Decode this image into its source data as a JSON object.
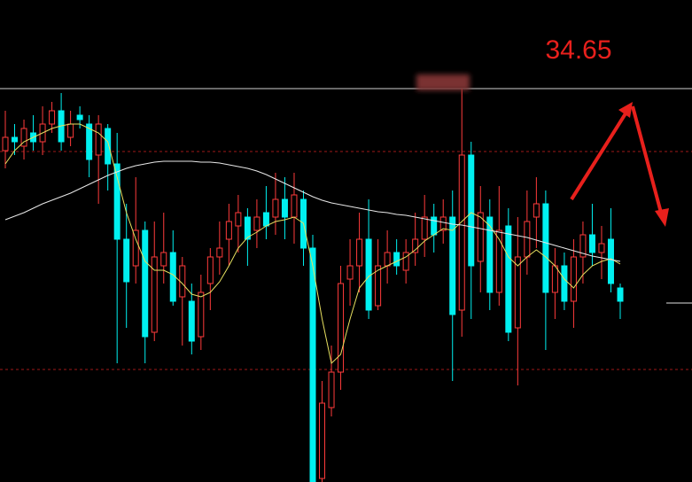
{
  "chart_data": {
    "type": "candlestick",
    "ylim": [
      30.21,
      35.65
    ],
    "up_color": "#ff3b3b",
    "down_color": "#00f0f0",
    "open": [
      33.95,
      34.1,
      34.0,
      34.15,
      34.05,
      34.25,
      34.4,
      34.1,
      34.35,
      34.25,
      33.9,
      34.2,
      33.8,
      32.95,
      32.65,
      33.05,
      31.9,
      32.65,
      32.8,
      32.3,
      32.25,
      31.85,
      32.45,
      32.75,
      32.95,
      33.1,
      33.2,
      33.05,
      33.25,
      33.2,
      33.4,
      33.2,
      33.4,
      32.85,
      30.25,
      31.05,
      31.45,
      32.5,
      32.65,
      32.95,
      32.2,
      32.65,
      32.8,
      32.6,
      32.8,
      32.95,
      33.2,
      33.05,
      33.2,
      32.15,
      33.9,
      32.7,
      33.2,
      32.35,
      33.1,
      31.95,
      32.75,
      33.2,
      33.35,
      32.35,
      32.65,
      32.25,
      32.75,
      33.0,
      32.8,
      32.95,
      32.4
    ],
    "high": [
      34.4,
      34.25,
      34.3,
      34.35,
      34.45,
      34.5,
      34.6,
      34.4,
      34.45,
      34.35,
      34.35,
      34.25,
      34.15,
      33.35,
      33.65,
      33.15,
      33.15,
      33.25,
      33.05,
      32.75,
      32.45,
      32.55,
      32.85,
      33.15,
      33.35,
      33.45,
      33.3,
      33.4,
      33.55,
      33.7,
      33.65,
      33.7,
      33.5,
      33.0,
      31.35,
      31.75,
      32.65,
      32.95,
      33.25,
      33.4,
      32.95,
      33.05,
      32.95,
      32.95,
      33.25,
      33.45,
      33.35,
      33.4,
      33.5,
      34.65,
      34.05,
      33.55,
      33.4,
      33.55,
      33.3,
      33.2,
      33.5,
      33.65,
      33.5,
      32.85,
      32.8,
      32.95,
      33.15,
      33.35,
      33.1,
      33.3,
      32.45
    ],
    "low": [
      33.75,
      33.9,
      33.85,
      33.95,
      33.9,
      34.15,
      33.95,
      34.0,
      34.2,
      33.65,
      33.35,
      33.5,
      31.55,
      31.95,
      32.45,
      31.55,
      31.8,
      32.45,
      32.2,
      31.75,
      31.65,
      31.7,
      32.15,
      32.55,
      32.65,
      32.8,
      32.65,
      32.85,
      32.95,
      33.0,
      32.95,
      32.9,
      32.65,
      30.21,
      30.21,
      30.95,
      31.25,
      32.2,
      32.35,
      32.05,
      32.15,
      32.45,
      32.55,
      32.45,
      32.65,
      32.75,
      32.8,
      32.9,
      31.35,
      31.85,
      32.05,
      32.35,
      32.15,
      32.2,
      31.8,
      31.3,
      32.55,
      32.85,
      31.7,
      32.05,
      32.15,
      31.95,
      32.45,
      32.65,
      32.5,
      32.35,
      32.05
    ],
    "close": [
      34.1,
      34.05,
      34.2,
      34.05,
      34.25,
      34.4,
      34.05,
      34.25,
      34.3,
      33.85,
      34.25,
      33.8,
      32.95,
      32.47,
      33.05,
      31.85,
      32.75,
      32.8,
      32.25,
      32.65,
      31.8,
      32.35,
      32.75,
      32.85,
      33.15,
      33.25,
      32.95,
      33.2,
      33.1,
      33.4,
      33.2,
      33.45,
      32.85,
      30.21,
      31.1,
      31.45,
      32.45,
      32.65,
      32.95,
      32.15,
      32.65,
      32.8,
      32.65,
      32.8,
      32.95,
      33.2,
      33.0,
      33.2,
      32.1,
      33.9,
      32.65,
      33.25,
      32.35,
      33.05,
      31.9,
      32.75,
      33.15,
      33.35,
      32.35,
      32.65,
      32.25,
      32.75,
      33.0,
      32.8,
      32.9,
      32.45,
      32.25
    ],
    "lines": [
      {
        "color": "#e8e060",
        "values": [
          33.8,
          33.95,
          34.05,
          34.1,
          34.15,
          34.2,
          34.23,
          34.25,
          34.25,
          34.2,
          34.15,
          34.05,
          33.65,
          33.25,
          32.95,
          32.7,
          32.6,
          32.6,
          32.55,
          32.45,
          32.33,
          32.3,
          32.35,
          32.47,
          32.65,
          32.85,
          32.97,
          33.03,
          33.1,
          33.15,
          33.17,
          33.2,
          33.13,
          32.65,
          32.05,
          31.55,
          31.65,
          32.05,
          32.4,
          32.53,
          32.6,
          32.65,
          32.7,
          32.75,
          32.83,
          32.93,
          33.0,
          33.07,
          33.05,
          33.15,
          33.25,
          33.2,
          33.1,
          32.95,
          32.75,
          32.65,
          32.75,
          32.83,
          32.75,
          32.65,
          32.5,
          32.4,
          32.55,
          32.65,
          32.7,
          32.73,
          32.67
        ]
      },
      {
        "color": "#e8e8e8",
        "values": [
          33.17,
          33.21,
          33.25,
          33.3,
          33.35,
          33.39,
          33.43,
          33.47,
          33.52,
          33.57,
          33.62,
          33.67,
          33.71,
          33.75,
          33.78,
          33.8,
          33.82,
          33.83,
          33.83,
          33.83,
          33.83,
          33.82,
          33.82,
          33.81,
          33.79,
          33.77,
          33.75,
          33.72,
          33.68,
          33.63,
          33.58,
          33.53,
          33.48,
          33.43,
          33.39,
          33.36,
          33.34,
          33.32,
          33.3,
          33.28,
          33.26,
          33.25,
          33.23,
          33.22,
          33.2,
          33.18,
          33.16,
          33.14,
          33.12,
          33.11,
          33.09,
          33.07,
          33.05,
          33.03,
          33.01,
          32.99,
          32.97,
          32.94,
          32.91,
          32.88,
          32.85,
          32.82,
          32.79,
          32.76,
          32.74,
          32.72,
          32.7
        ]
      }
    ],
    "price_line": 34.65,
    "dashed_levels": [
      33.94,
      31.48
    ],
    "marker_level": 32.23
  }
}
